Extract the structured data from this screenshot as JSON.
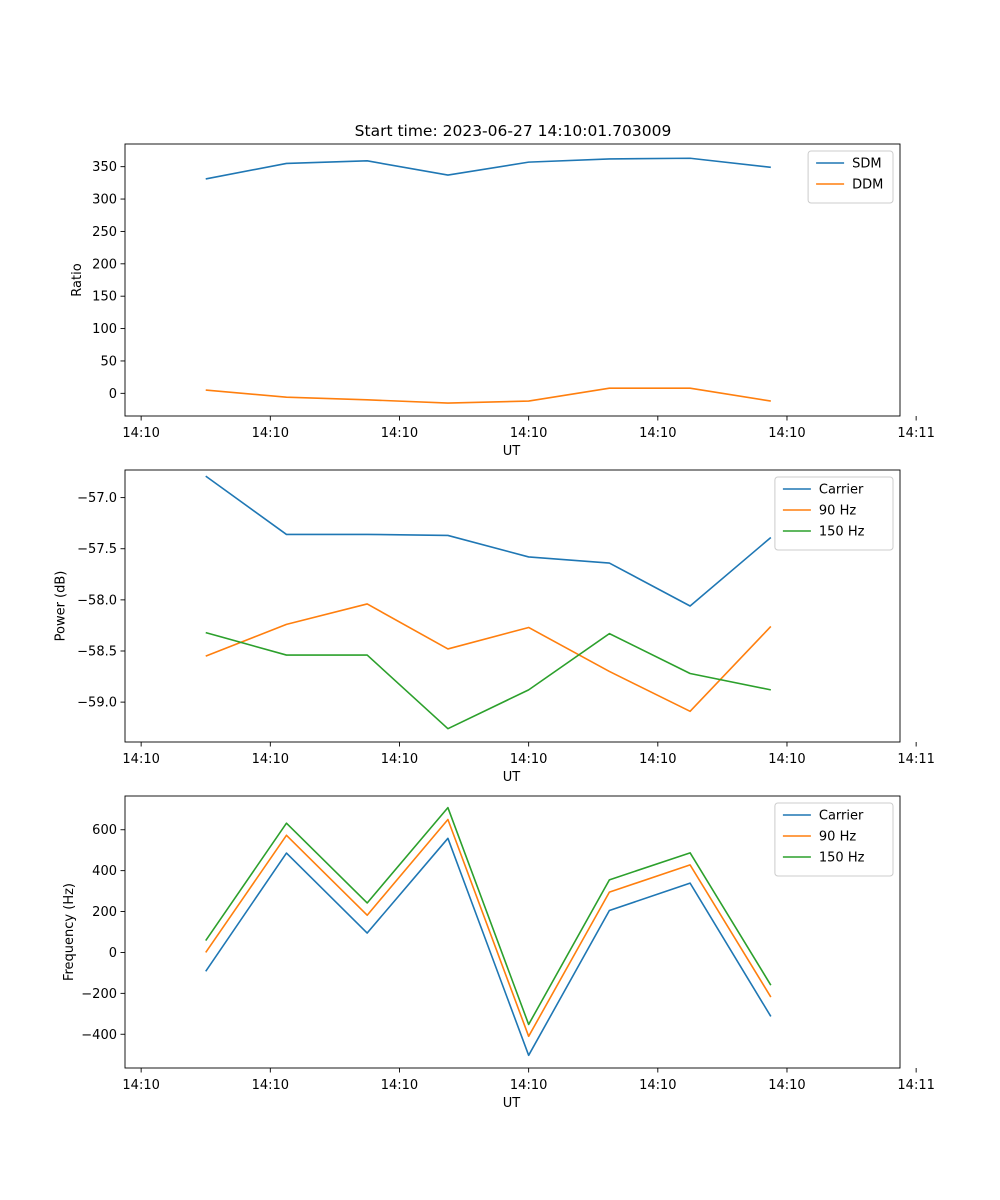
{
  "figure": {
    "title": "Start time: 2023-06-27 14:10:01.703009"
  },
  "chart_data": [
    {
      "type": "line",
      "xlabel": "UT",
      "ylabel": "Ratio",
      "xlim": [
        0,
        9.6
      ],
      "x": [
        1,
        2,
        3,
        4,
        5,
        6,
        7,
        8
      ],
      "x_tick_values": [
        0.2,
        1.8,
        3.4,
        5.0,
        6.6,
        8.2,
        9.8
      ],
      "x_tick_labels": [
        "14:10",
        "14:10",
        "14:10",
        "14:10",
        "14:10",
        "14:10",
        "14:11"
      ],
      "ylim": [
        -35,
        385
      ],
      "yticks": [
        0,
        50,
        100,
        150,
        200,
        250,
        300,
        350
      ],
      "y_tick_labels": [
        "0",
        "50",
        "100",
        "150",
        "200",
        "250",
        "300",
        "350"
      ],
      "legend_position": "top-right",
      "series": [
        {
          "name": "SDM",
          "color": "#1f77b4",
          "values": [
            331,
            355,
            359,
            337,
            357,
            362,
            363,
            349
          ]
        },
        {
          "name": "DDM",
          "color": "#ff7f0e",
          "values": [
            5,
            -6,
            -10,
            -15,
            -12,
            8,
            8,
            -12
          ]
        }
      ]
    },
    {
      "type": "line",
      "xlabel": "UT",
      "ylabel": "Power (dB)",
      "xlim": [
        0,
        9.6
      ],
      "x": [
        1,
        2,
        3,
        4,
        5,
        6,
        7,
        8
      ],
      "x_tick_values": [
        0.2,
        1.8,
        3.4,
        5.0,
        6.6,
        8.2,
        9.8
      ],
      "x_tick_labels": [
        "14:10",
        "14:10",
        "14:10",
        "14:10",
        "14:10",
        "14:10",
        "14:11"
      ],
      "ylim": [
        -59.39,
        -56.73
      ],
      "yticks": [
        -59.0,
        -58.5,
        -58.0,
        -57.5,
        -57.0
      ],
      "y_tick_labels": [
        "−59.0",
        "−58.5",
        "−58.0",
        "−57.5",
        "−57.0"
      ],
      "legend_position": "top-right",
      "series": [
        {
          "name": "Carrier",
          "color": "#1f77b4",
          "values": [
            -56.79,
            -57.36,
            -57.36,
            -57.37,
            -57.58,
            -57.64,
            -58.06,
            -57.39
          ]
        },
        {
          "name": "90 Hz",
          "color": "#ff7f0e",
          "values": [
            -58.55,
            -58.24,
            -58.04,
            -58.48,
            -58.27,
            -58.7,
            -59.09,
            -58.26
          ]
        },
        {
          "name": "150 Hz",
          "color": "#2ca02c",
          "values": [
            -58.32,
            -58.54,
            -58.54,
            -59.26,
            -58.88,
            -58.33,
            -58.72,
            -58.88
          ]
        }
      ]
    },
    {
      "type": "line",
      "xlabel": "UT",
      "ylabel": "Frequency (Hz)",
      "xlim": [
        0,
        9.6
      ],
      "x": [
        1,
        2,
        3,
        4,
        5,
        6,
        7,
        8
      ],
      "x_tick_values": [
        0.2,
        1.8,
        3.4,
        5.0,
        6.6,
        8.2,
        9.8
      ],
      "x_tick_labels": [
        "14:10",
        "14:10",
        "14:10",
        "14:10",
        "14:10",
        "14:10",
        "14:11"
      ],
      "ylim": [
        -565,
        765
      ],
      "yticks": [
        -400,
        -200,
        0,
        200,
        400,
        600
      ],
      "y_tick_labels": [
        "−400",
        "−200",
        "0",
        "200",
        "400",
        "600"
      ],
      "legend_position": "top-right",
      "series": [
        {
          "name": "Carrier",
          "color": "#1f77b4",
          "values": [
            -92,
            486,
            95,
            558,
            -503,
            205,
            339,
            -313
          ]
        },
        {
          "name": "90 Hz",
          "color": "#ff7f0e",
          "values": [
            0,
            573,
            182,
            650,
            -410,
            295,
            428,
            -218
          ]
        },
        {
          "name": "150 Hz",
          "color": "#2ca02c",
          "values": [
            58,
            632,
            242,
            708,
            -352,
            355,
            487,
            -160
          ]
        }
      ]
    }
  ]
}
